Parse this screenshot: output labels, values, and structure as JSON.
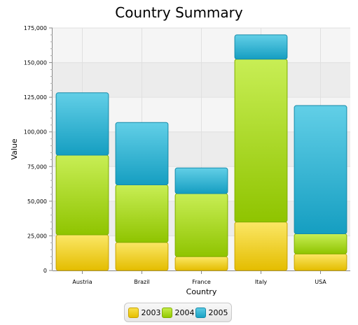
{
  "chart_data": {
    "type": "bar",
    "stacked": true,
    "title": "Country Summary",
    "xlabel": "Country",
    "ylabel": "Value",
    "categories": [
      "Austria",
      "Brazil",
      "France",
      "Italy",
      "USA"
    ],
    "series": [
      {
        "name": "2003",
        "values": [
          25700,
          20300,
          10000,
          35000,
          12000
        ],
        "color": "#f0cf1c"
      },
      {
        "name": "2004",
        "values": [
          57500,
          41500,
          45500,
          117500,
          14500
        ],
        "color": "#a9d818"
      },
      {
        "name": "2005",
        "values": [
          45000,
          45000,
          18500,
          17500,
          92500
        ],
        "color": "#37b6d8"
      }
    ],
    "ylim": [
      0,
      175000
    ],
    "yticks": [
      "0",
      "25,000",
      "50,000",
      "75,000",
      "100,000",
      "125,000",
      "150,000",
      "175,000"
    ],
    "grid": true,
    "legend_position": "bottom"
  }
}
